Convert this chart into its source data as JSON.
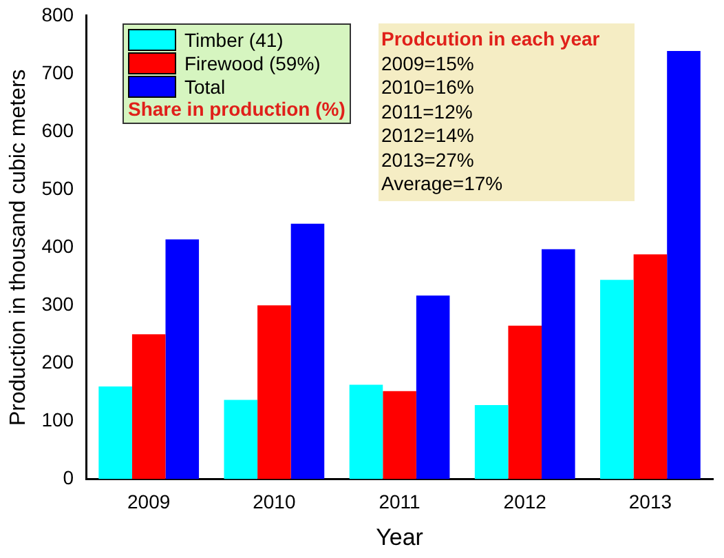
{
  "chart_data": {
    "type": "bar",
    "xlabel": "Year",
    "ylabel": "Production in thousand cubic meters",
    "legend_title": "Share in production (%)",
    "legend": "top left",
    "categories": [
      "2009",
      "2010",
      "2011",
      "2012",
      "2013"
    ],
    "series": [
      {
        "name": "Timber (41)",
        "color": "#00ffff",
        "values": [
          160,
          137,
          163,
          128,
          344
        ]
      },
      {
        "name": "Firewood (59%)",
        "color": "#ff0000",
        "values": [
          250,
          300,
          152,
          265,
          388
        ]
      },
      {
        "name": "Total",
        "color": "#0000ff",
        "values": [
          414,
          441,
          317,
          397,
          739
        ]
      }
    ],
    "ylim": [
      0,
      800
    ],
    "yticks": [
      0,
      100,
      200,
      300,
      400,
      500,
      600,
      700,
      800
    ],
    "annotations": [
      "Prodcution in each year",
      "2009=15%",
      "2010=16%",
      "2011=12%",
      "2012=14%",
      "2013=27%",
      "Average=17%"
    ]
  }
}
